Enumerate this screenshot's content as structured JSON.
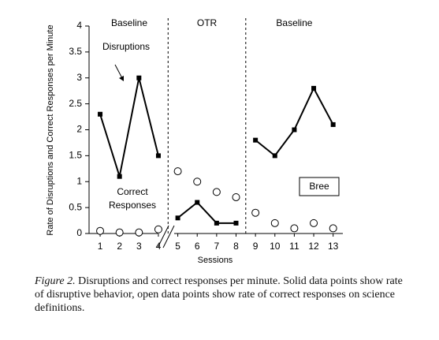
{
  "chart_data": {
    "type": "phase-line",
    "ylabel": "Rate of Disruptions and Correct Responses per Minute",
    "xlabel": "Sessions",
    "xlim": [
      0.43,
      13.5
    ],
    "xticks": [
      1,
      2,
      3,
      4,
      5,
      6,
      7,
      8,
      9,
      10,
      11,
      12,
      13
    ],
    "ylim": [
      0,
      4
    ],
    "yticks": [
      0,
      0.5,
      1,
      1.5,
      2,
      2.5,
      3,
      3.5,
      4
    ],
    "series_styles": {
      "disruptions": {
        "color": "#000000",
        "marker": "square"
      },
      "correct": {
        "color": "#000000",
        "marker": "open-circle"
      }
    },
    "phases": [
      {
        "label": "Baseline",
        "x": [
          1,
          2,
          3,
          4
        ],
        "disruptions": [
          2.3,
          1.1,
          3.0,
          1.5
        ],
        "correct": [
          0.05,
          0.02,
          0.02,
          0.08
        ]
      },
      {
        "label": "OTR",
        "x": [
          5,
          6,
          7,
          8
        ],
        "disruptions": [
          0.3,
          0.6,
          0.2,
          0.2
        ],
        "correct": [
          1.2,
          1.0,
          0.8,
          0.7
        ]
      },
      {
        "label": "Baseline",
        "x": [
          9,
          10,
          11,
          12,
          13
        ],
        "disruptions": [
          1.8,
          1.5,
          2.0,
          2.8,
          2.1
        ],
        "correct": [
          0.4,
          0.2,
          0.1,
          0.2,
          0.1
        ]
      }
    ],
    "annotations": {
      "disruptions": "Disruptions",
      "correct_line1": "Correct",
      "correct_line2": "Responses",
      "participant": "Bree"
    }
  },
  "caption": {
    "label": "Figure 2.",
    "text": "Disruptions and correct responses per minute. Solid data points show rate of disruptive behavior, open data points show rate of correct responses on science definitions."
  }
}
